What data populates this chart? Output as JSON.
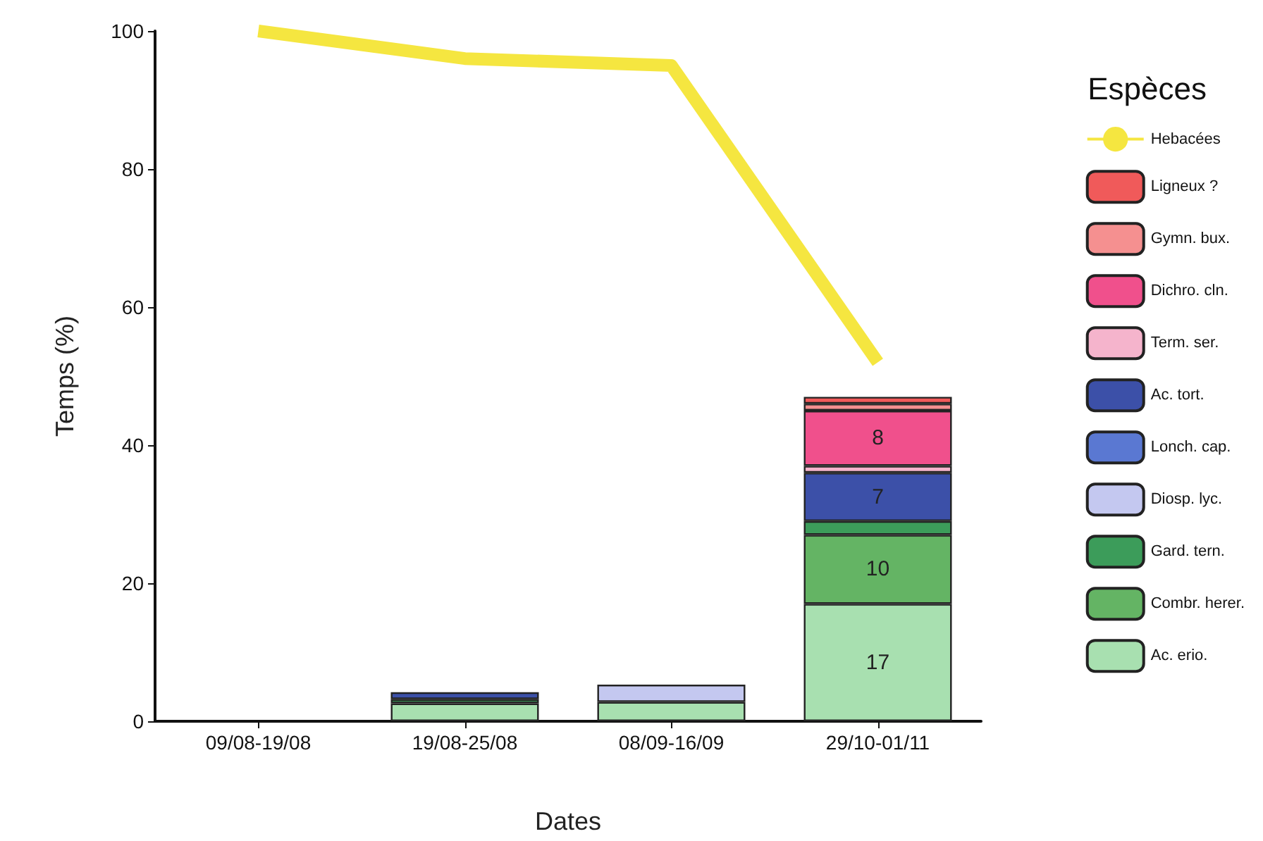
{
  "chart_data": {
    "type": "bar",
    "stacked": true,
    "xlabel": "Dates",
    "ylabel": "Temps (%)",
    "legend_title": "Espèces",
    "categories": [
      "09/08-19/08",
      "19/08-25/08",
      "08/09-16/09",
      "29/10-01/11"
    ],
    "ylim": [
      0,
      100
    ],
    "yticks": [
      0,
      20,
      40,
      60,
      80,
      100
    ],
    "grid": false,
    "legend": "right",
    "series": [
      {
        "name": "Ac. erio.",
        "color": "#a8e0b0",
        "values": [
          null,
          2.6,
          2.8,
          17
        ],
        "value_labels": [
          null,
          null,
          null,
          "17"
        ]
      },
      {
        "name": "Combr. herer.",
        "color": "#64b464",
        "values": [
          null,
          null,
          null,
          10
        ],
        "value_labels": [
          null,
          null,
          null,
          "10"
        ]
      },
      {
        "name": "Gard. tern.",
        "color": "#3c9c5a",
        "values": [
          null,
          0.6,
          null,
          2
        ]
      },
      {
        "name": "Diosp. lyc.",
        "color": "#c4c8f0",
        "values": [
          null,
          null,
          2.5,
          null
        ]
      },
      {
        "name": "Lonch. cap.",
        "color": "#5a78d2",
        "values": [
          null,
          null,
          null,
          null
        ]
      },
      {
        "name": "Ac. tort.",
        "color": "#3c50a8",
        "values": [
          null,
          1,
          null,
          7
        ],
        "value_labels": [
          null,
          null,
          null,
          "7"
        ]
      },
      {
        "name": "Term. ser.",
        "color": "#f5b4cc",
        "values": [
          null,
          null,
          null,
          1
        ]
      },
      {
        "name": "Dichro. cln.",
        "color": "#f0508c",
        "values": [
          null,
          null,
          null,
          8
        ],
        "value_labels": [
          null,
          null,
          null,
          "8"
        ]
      },
      {
        "name": "Gymn. bux.",
        "color": "#f59090",
        "values": [
          null,
          null,
          null,
          1
        ]
      },
      {
        "name": "Ligneux ?",
        "color": "#f05a5a",
        "values": [
          null,
          null,
          null,
          1
        ]
      },
      {
        "type": "line",
        "name": "Hebacées",
        "color": "#f5e640",
        "values": [
          100,
          96,
          95,
          52
        ],
        "marker": "none"
      }
    ]
  }
}
